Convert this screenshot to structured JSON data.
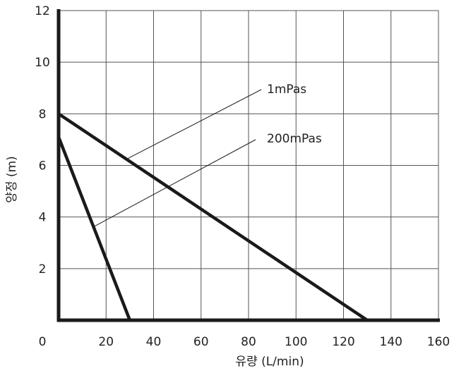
{
  "chart_data": {
    "type": "line",
    "title": "",
    "xlabel": "유량 (L/min)",
    "ylabel": "양정 (m)",
    "xlim": [
      0,
      160
    ],
    "ylim": [
      0,
      12
    ],
    "xticks": [
      0,
      20,
      40,
      60,
      80,
      100,
      120,
      140,
      160
    ],
    "yticks": [
      2,
      4,
      6,
      8,
      10,
      12
    ],
    "grid": true,
    "series": [
      {
        "name": "1mPas",
        "x": [
          0,
          130
        ],
        "y": [
          8,
          0
        ]
      },
      {
        "name": "200mPas",
        "x": [
          0,
          30
        ],
        "y": [
          7.1,
          0
        ]
      }
    ],
    "annotations": [
      {
        "text": "1mPas",
        "series": 0
      },
      {
        "text": "200mPas",
        "series": 1
      }
    ]
  }
}
